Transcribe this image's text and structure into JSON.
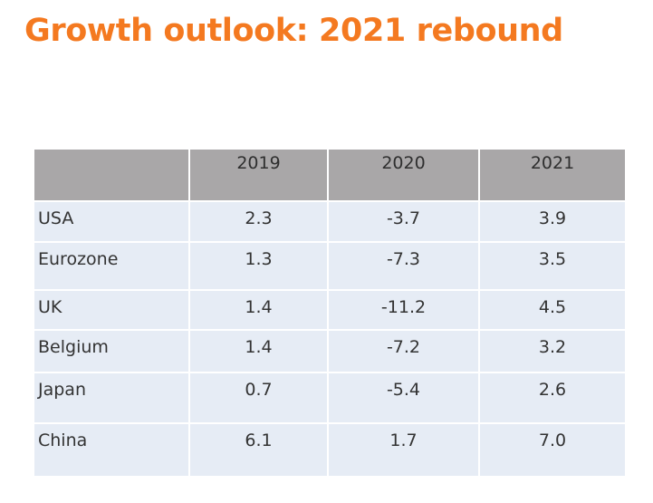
{
  "title": "Growth outlook: 2021 rebound",
  "table": {
    "headers": [
      "",
      "2019",
      "2020",
      "2021"
    ],
    "rows": [
      [
        "USA",
        "2.3",
        "-3.7",
        "3.9"
      ],
      [
        "Eurozone",
        "1.3",
        "-7.3",
        "3.5"
      ],
      [
        "UK",
        "1.4",
        "-11.2",
        "4.5"
      ],
      [
        "Belgium",
        "1.4",
        "-7.2",
        "3.2"
      ],
      [
        "Japan",
        "0.7",
        "-5.4",
        "2.6"
      ],
      [
        "China",
        "6.1",
        "1.7",
        "7.0"
      ]
    ]
  },
  "colors": {
    "title": "#f47920",
    "header_bg": "#a9a7a8",
    "row_bg": "#e6ecf5"
  }
}
